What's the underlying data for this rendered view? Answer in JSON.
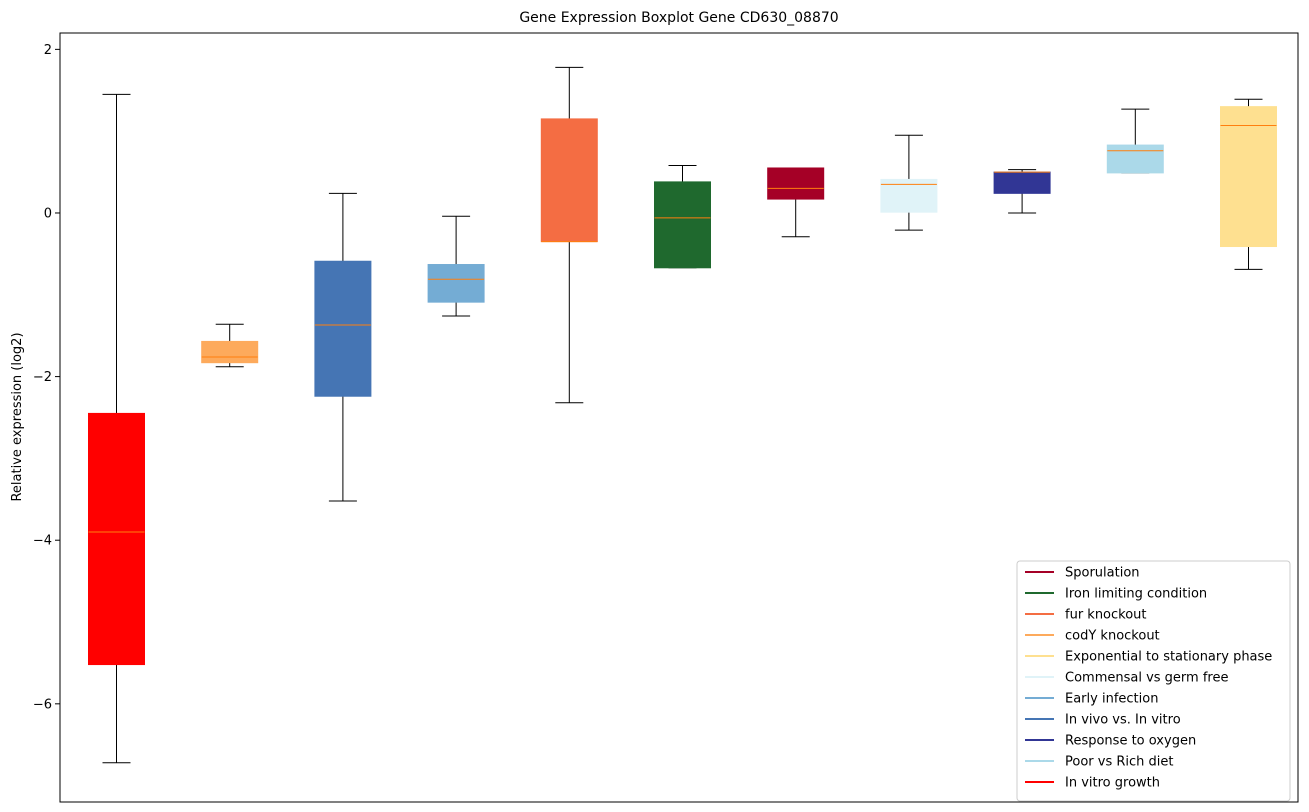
{
  "chart_data": {
    "type": "boxplot",
    "title": "Gene Expression Boxplot Gene CD630_08870",
    "ylabel": "Relative expression (log2)",
    "xlabel": "",
    "ylim": [
      -7.2,
      2.2
    ],
    "yticks": [
      2,
      0,
      -2,
      -4,
      -6
    ],
    "median_color": "#ff7f0e",
    "series": [
      {
        "name": "In vitro growth",
        "color": "#ff0000",
        "min": -6.72,
        "q1": -5.52,
        "median": -3.9,
        "q3": -2.45,
        "max": 1.45
      },
      {
        "name": "codY knockout",
        "color": "#fdaa5c",
        "min": -1.88,
        "q1": -1.83,
        "median": -1.76,
        "q3": -1.57,
        "max": -1.36
      },
      {
        "name": "In vivo vs. In vitro",
        "color": "#4575b4",
        "min": -3.52,
        "q1": -2.24,
        "median": -1.37,
        "q3": -0.59,
        "max": 0.24
      },
      {
        "name": "Early infection",
        "color": "#74acd4",
        "min": -1.26,
        "q1": -1.09,
        "median": -0.81,
        "q3": -0.63,
        "max": -0.04
      },
      {
        "name": "fur knockout",
        "color": "#f46d43",
        "min": -2.32,
        "q1": -0.35,
        "median": -0.35,
        "q3": 1.15,
        "max": 1.78
      },
      {
        "name": "Iron limiting condition",
        "color": "#1f692e",
        "min": -0.67,
        "q1": -0.67,
        "median": -0.06,
        "q3": 0.38,
        "max": 0.58
      },
      {
        "name": "Sporulation",
        "color": "#a50026",
        "min": -0.29,
        "q1": 0.17,
        "median": 0.3,
        "q3": 0.55,
        "max": 0.55
      },
      {
        "name": "Commensal vs germ free",
        "color": "#e0f3f8",
        "min": -0.21,
        "q1": 0.01,
        "median": 0.35,
        "q3": 0.41,
        "max": 0.95
      },
      {
        "name": "Response to oxygen",
        "color": "#313695",
        "min": 0.0,
        "q1": 0.24,
        "median": 0.5,
        "q3": 0.5,
        "max": 0.53
      },
      {
        "name": "Poor vs Rich diet",
        "color": "#abd9e9",
        "min": 0.49,
        "q1": 0.49,
        "median": 0.76,
        "q3": 0.83,
        "max": 1.27
      },
      {
        "name": "Exponential to stationary phase",
        "color": "#fee090",
        "min": -0.69,
        "q1": -0.41,
        "median": 1.07,
        "q3": 1.3,
        "max": 1.39
      }
    ],
    "legend": {
      "placement": "lower-right",
      "entries": [
        {
          "label": "Sporulation",
          "color": "#a50026"
        },
        {
          "label": "Iron limiting condition",
          "color": "#1f692e"
        },
        {
          "label": "fur knockout",
          "color": "#f46d43"
        },
        {
          "label": "codY knockout",
          "color": "#fdaa5c"
        },
        {
          "label": "Exponential to stationary phase",
          "color": "#fee090"
        },
        {
          "label": "Commensal vs germ free",
          "color": "#e0f3f8"
        },
        {
          "label": "Early infection",
          "color": "#74acd4"
        },
        {
          "label": "In vivo vs. In vitro",
          "color": "#4575b4"
        },
        {
          "label": "Response to oxygen",
          "color": "#313695"
        },
        {
          "label": "Poor vs Rich diet",
          "color": "#abd9e9"
        },
        {
          "label": "In vitro growth",
          "color": "#ff0000"
        }
      ]
    }
  }
}
